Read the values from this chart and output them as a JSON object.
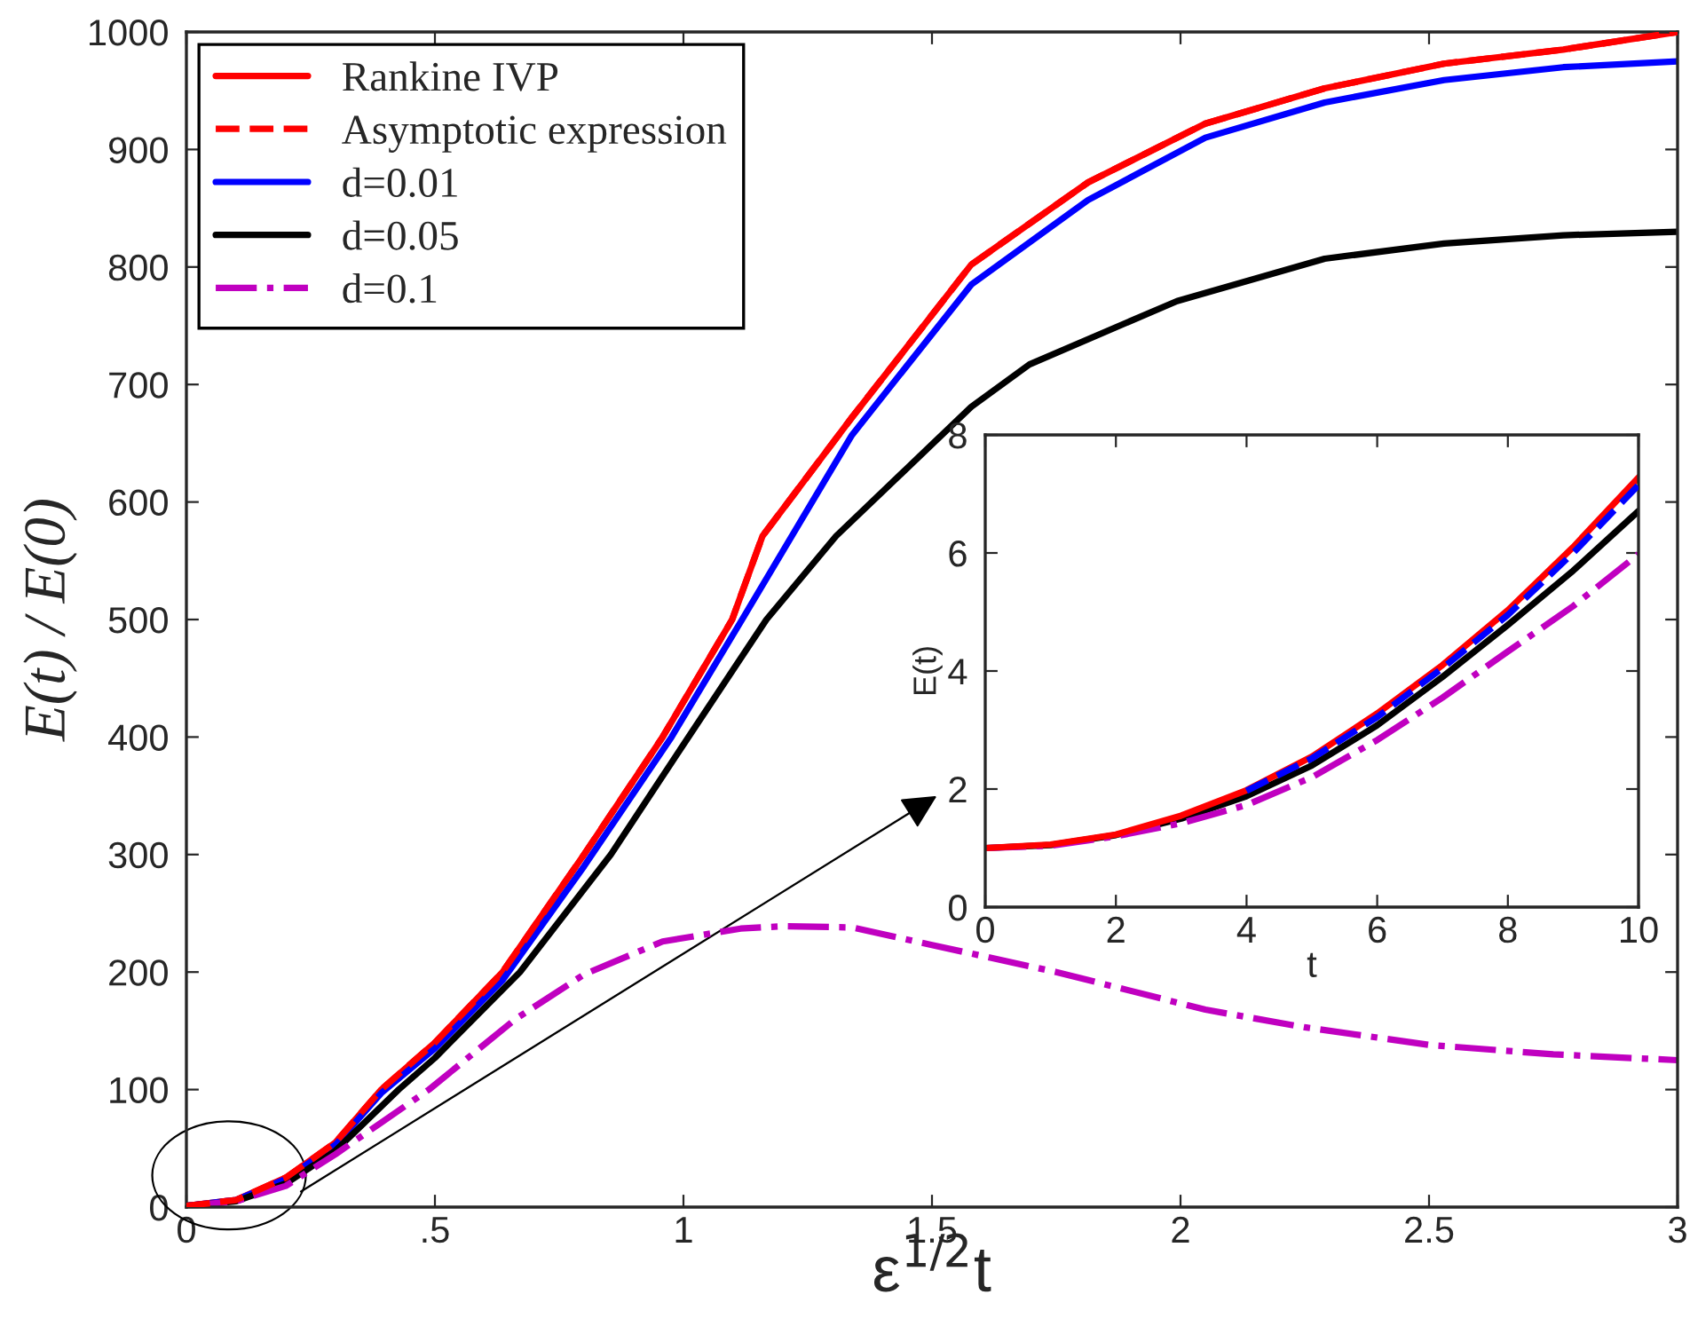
{
  "chart_data": [
    {
      "type": "line",
      "xlabel": "ε$^{1/2}$t",
      "ylabel": "E(t) / E(0)",
      "legend": "top left",
      "grid": false,
      "xlim": [
        0,
        3
      ],
      "xticks": [
        0,
        {
          "value": 0.5,
          "label": ".5"
        },
        1,
        1.5,
        2,
        2.5,
        3
      ],
      "ylim": [
        0,
        1000
      ],
      "yticks": [
        0,
        100,
        200,
        300,
        400,
        500,
        600,
        700,
        800,
        900,
        1000
      ],
      "series": [
        {
          "name": "Rankine IVP",
          "color": "#ff0000",
          "line_style": "solid",
          "x": [
            0,
            0.1,
            0.2,
            0.3,
            0.392,
            0.5,
            0.636,
            0.8,
            0.958,
            1.098,
            1.159,
            1.339,
            1.579,
            1.814,
            2.05,
            2.29,
            2.53,
            2.77,
            3
          ],
          "values": [
            1,
            6,
            25,
            55,
            100,
            140,
            200,
            300,
            400,
            500,
            571,
            672,
            802,
            872,
            922,
            952,
            973,
            985,
            1000
          ]
        },
        {
          "name": "Asymptotic expression",
          "color": "#ff0000",
          "line_style": "dashed",
          "x": [
            0,
            0.1,
            0.2,
            0.3,
            0.392,
            0.5,
            0.636,
            0.8,
            0.958,
            1.098,
            1.159,
            1.339,
            1.579,
            1.814,
            2.05,
            2.29,
            2.53,
            2.77,
            3
          ],
          "values": [
            1,
            6,
            25,
            55,
            100,
            140,
            200,
            300,
            400,
            500,
            571,
            672,
            802,
            872,
            922,
            952,
            973,
            985,
            1000
          ]
        },
        {
          "name": "d=0.01",
          "color": "#0000ff",
          "line_style": "solid",
          "x": [
            0,
            0.1,
            0.2,
            0.3,
            0.392,
            0.5,
            0.636,
            0.8,
            0.976,
            1.118,
            1.339,
            1.579,
            1.814,
            2.05,
            2.29,
            2.53,
            2.77,
            3
          ],
          "values": [
            1,
            6,
            24,
            53,
            97,
            135,
            193,
            290,
            400,
            500,
            657,
            785,
            857,
            910,
            940,
            959,
            970,
            975
          ]
        },
        {
          "name": "d=0.05",
          "color": "#000000",
          "line_style": "solid",
          "x": [
            0,
            0.1,
            0.2,
            0.3,
            0.427,
            0.5,
            0.671,
            0.854,
            1.01,
            1.167,
            1.307,
            1.579,
            1.696,
            1.993,
            2.29,
            2.53,
            2.77,
            3
          ],
          "values": [
            1,
            5,
            20,
            48,
            100,
            127,
            200,
            300,
            400,
            500,
            571,
            681,
            717,
            771,
            807,
            820,
            827,
            830
          ]
        },
        {
          "name": "d=0.1",
          "color": "#c000c0",
          "line_style": "dashdot",
          "x": [
            0,
            0.1,
            0.2,
            0.3,
            0.488,
            0.662,
            0.8,
            0.958,
            1.115,
            1.2,
            1.339,
            1.5,
            1.75,
            2.05,
            2.25,
            2.5,
            2.75,
            3
          ],
          "values": [
            1,
            5,
            18,
            45,
            100,
            160,
            198,
            226,
            237,
            239,
            238,
            223,
            200,
            168,
            153,
            138,
            130,
            125
          ]
        }
      ]
    },
    {
      "type": "line",
      "xlabel": "t",
      "ylabel": "E(t)",
      "legend": false,
      "grid": false,
      "xlim": [
        0,
        10
      ],
      "xticks": [
        0,
        2,
        4,
        6,
        8,
        10
      ],
      "ylim": [
        0,
        8
      ],
      "yticks": [
        0,
        2,
        4,
        6,
        8
      ],
      "x": [
        0,
        1,
        2,
        3,
        4,
        5,
        6,
        7,
        8,
        9,
        10
      ],
      "series": [
        {
          "color": "#0000ff",
          "line_style": "dashed",
          "values": [
            null,
            null,
            null,
            null,
            1.97,
            2.52,
            3.22,
            4.05,
            4.95,
            6.0,
            7.15
          ]
        },
        {
          "color": "#000000",
          "line_style": "solid",
          "values": [
            1,
            1.05,
            1.22,
            1.5,
            1.88,
            2.4,
            3.08,
            3.9,
            4.78,
            5.7,
            6.71
          ]
        },
        {
          "color": "#c000c0",
          "line_style": "dashdot",
          "values": [
            1,
            1.04,
            1.2,
            1.42,
            1.73,
            2.2,
            2.83,
            3.55,
            4.33,
            5.1,
            5.98
          ]
        },
        {
          "color": "#ff0000",
          "line_style": "solid",
          "values": [
            1,
            1.06,
            1.23,
            1.55,
            1.98,
            2.55,
            3.28,
            4.1,
            5.03,
            6.1,
            7.28
          ]
        }
      ]
    }
  ]
}
